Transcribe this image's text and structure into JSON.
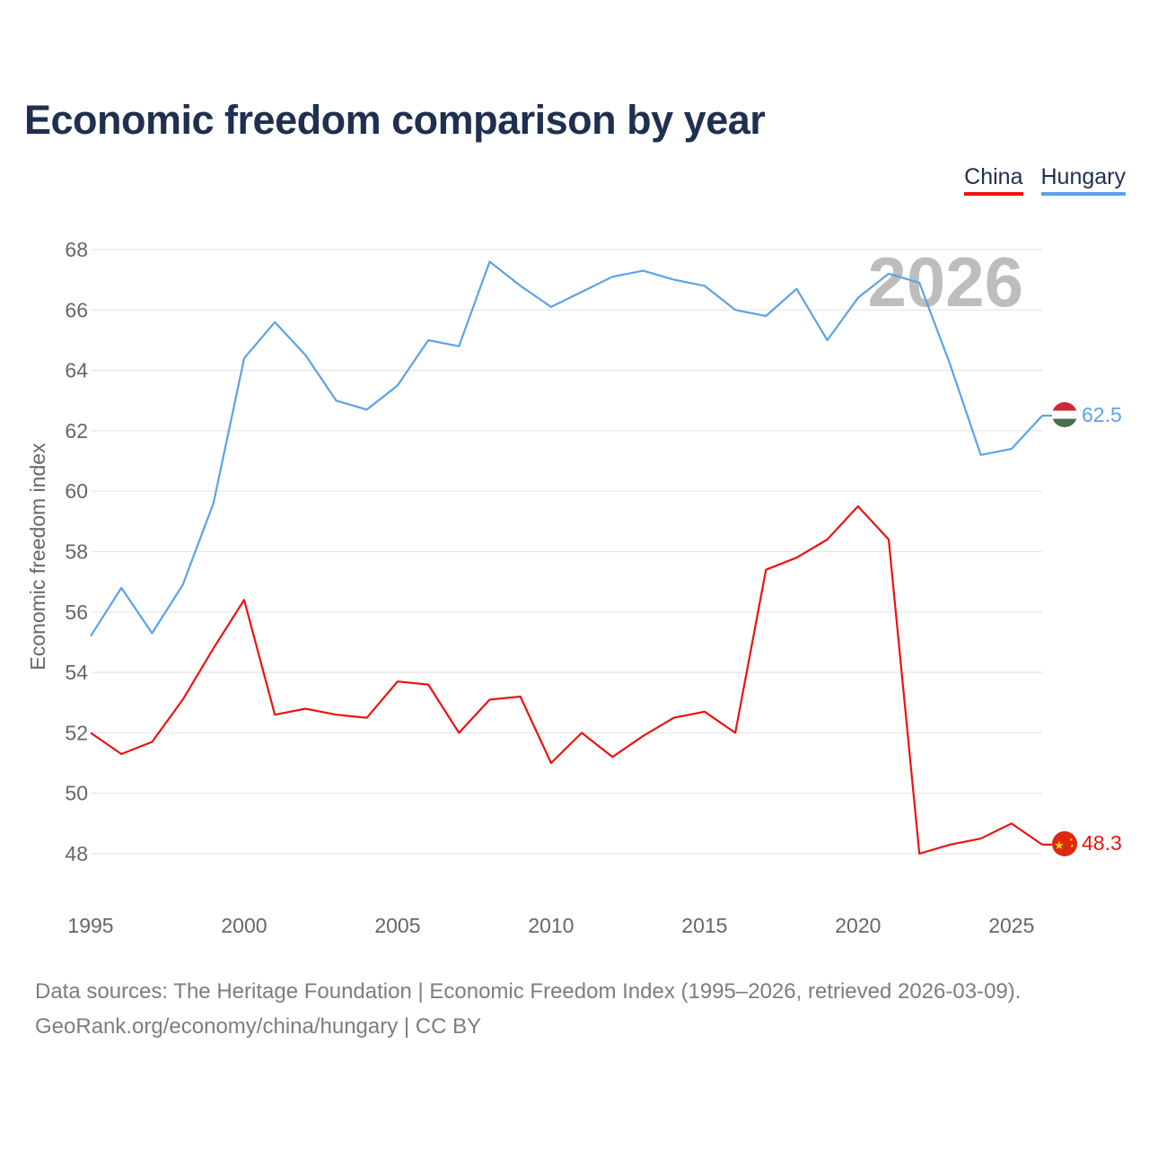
{
  "title": "Economic freedom comparison by year",
  "legend": [
    {
      "name": "China",
      "color": "#ee1111"
    },
    {
      "name": "Hungary",
      "color": "#5ba3e6"
    }
  ],
  "footer": {
    "line1": "Data sources: The Heritage Foundation | Economic Freedom Index (1995–2026, retrieved 2026-03-09).",
    "line2": "GeoRank.org/economy/china/hungary | CC BY"
  },
  "chart_data": {
    "type": "line",
    "title": "Economic freedom comparison by year",
    "xlabel": "",
    "ylabel": "Economic freedom index",
    "year_label": "2026",
    "xlim": [
      1995,
      2026
    ],
    "ylim": [
      46.2,
      69
    ],
    "xticks": [
      1995,
      2000,
      2005,
      2010,
      2015,
      2020,
      2025
    ],
    "yticks": [
      48,
      50,
      52,
      54,
      56,
      58,
      60,
      62,
      64,
      66,
      68
    ],
    "grid": true,
    "legend_position": "top-right",
    "x": [
      1995,
      1996,
      1997,
      1998,
      1999,
      2000,
      2001,
      2002,
      2003,
      2004,
      2005,
      2006,
      2007,
      2008,
      2009,
      2010,
      2011,
      2012,
      2013,
      2014,
      2015,
      2016,
      2017,
      2018,
      2019,
      2020,
      2021,
      2022,
      2023,
      2024,
      2025,
      2026
    ],
    "series": [
      {
        "name": "Hungary",
        "color": "#5ba3e6",
        "end_label": "62.5",
        "flag": "hungary-flag",
        "values": [
          55.2,
          56.8,
          55.3,
          56.9,
          59.6,
          64.4,
          65.6,
          64.5,
          63.0,
          62.7,
          63.5,
          65.0,
          64.8,
          67.6,
          66.8,
          66.1,
          66.6,
          67.1,
          67.3,
          67.0,
          66.8,
          66.0,
          65.8,
          66.7,
          65.0,
          66.4,
          67.2,
          66.9,
          64.2,
          61.2,
          61.4,
          62.5
        ]
      },
      {
        "name": "China",
        "color": "#ee1111",
        "end_label": "48.3",
        "flag": "china-flag",
        "values": [
          52.0,
          51.3,
          51.7,
          53.1,
          54.8,
          56.4,
          52.6,
          52.8,
          52.6,
          52.5,
          53.7,
          53.6,
          52.0,
          53.1,
          53.2,
          51.0,
          52.0,
          51.2,
          51.9,
          52.5,
          52.7,
          52.0,
          57.4,
          57.8,
          58.4,
          59.5,
          58.4,
          48.0,
          48.3,
          48.5,
          49.0,
          48.3
        ]
      }
    ]
  }
}
